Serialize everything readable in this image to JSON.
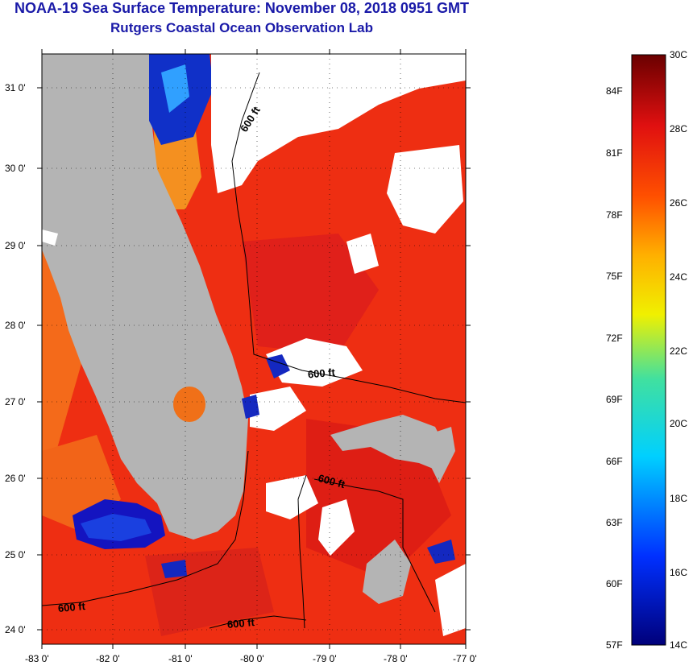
{
  "header": {
    "title": "NOAA-19 Sea Surface Temperature:  November 08, 2018 0951 GMT",
    "subtitle": "Rutgers Coastal Ocean Observation Lab"
  },
  "map": {
    "lon_labels": [
      "-83 0'",
      "-82 0'",
      "-81 0'",
      "-80 0'",
      "-79 0'",
      "-78 0'",
      "-77 0'"
    ],
    "lat_labels": [
      "31 0'",
      "30 0'",
      "29 0'",
      "28 0'",
      "27 0'",
      "26 0'",
      "25 0'",
      "24 0'"
    ],
    "contour_labels": [
      "600 ft",
      "600 ft",
      "600 ft",
      "600 ft",
      "600 ft"
    ],
    "colors": {
      "land": "#b4b4b4",
      "cloud": "#ffffff",
      "warm_sea": "#ee2a10",
      "cool_sea": "#f26a18"
    }
  },
  "colorbar": {
    "celsius_labels": [
      "30C",
      "28C",
      "26C",
      "24C",
      "22C",
      "20C",
      "18C",
      "16C",
      "14C"
    ],
    "fahrenheit_labels": [
      "84F",
      "81F",
      "78F",
      "75F",
      "72F",
      "69F",
      "66F",
      "63F",
      "60F",
      "57F"
    ],
    "colors": [
      "#0000a0",
      "#0040ff",
      "#00c8ff",
      "#40e0b0",
      "#ffff00",
      "#ff9000",
      "#ff3000",
      "#e01010",
      "#700000"
    ]
  }
}
